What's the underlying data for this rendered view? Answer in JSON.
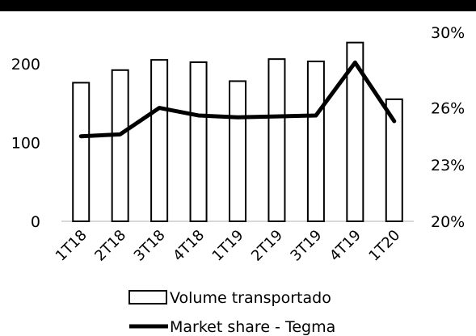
{
  "chart_data": {
    "type": "bar",
    "categories": [
      "1T18",
      "2T18",
      "3T18",
      "4T18",
      "1T19",
      "2T19",
      "3T19",
      "4T19",
      "1T20"
    ],
    "series": [
      {
        "name": "Volume transportado",
        "type": "bar",
        "axis": "left",
        "values": [
          176,
          192,
          205,
          202,
          178,
          206,
          203,
          227,
          155
        ]
      },
      {
        "name": "Market share - Tegma",
        "type": "line",
        "axis": "right",
        "values": [
          24.5,
          24.6,
          26.0,
          25.6,
          25.5,
          25.55,
          25.6,
          28.4,
          25.3
        ]
      }
    ],
    "y_left": {
      "ticks": [
        "0",
        "100",
        "200"
      ],
      "ylim": [
        0,
        240
      ]
    },
    "y_right": {
      "ticks": [
        "20%",
        "23%",
        "26%",
        "30%"
      ],
      "ylim": [
        20,
        30
      ],
      "tick_values": [
        20,
        23,
        26,
        30
      ]
    },
    "legend": {
      "position": "bottom"
    },
    "grid": false,
    "colors": {
      "bar_fill": "#ffffff",
      "bar_stroke": "#000000",
      "line": "#000000",
      "header_bar": "#000000"
    }
  }
}
